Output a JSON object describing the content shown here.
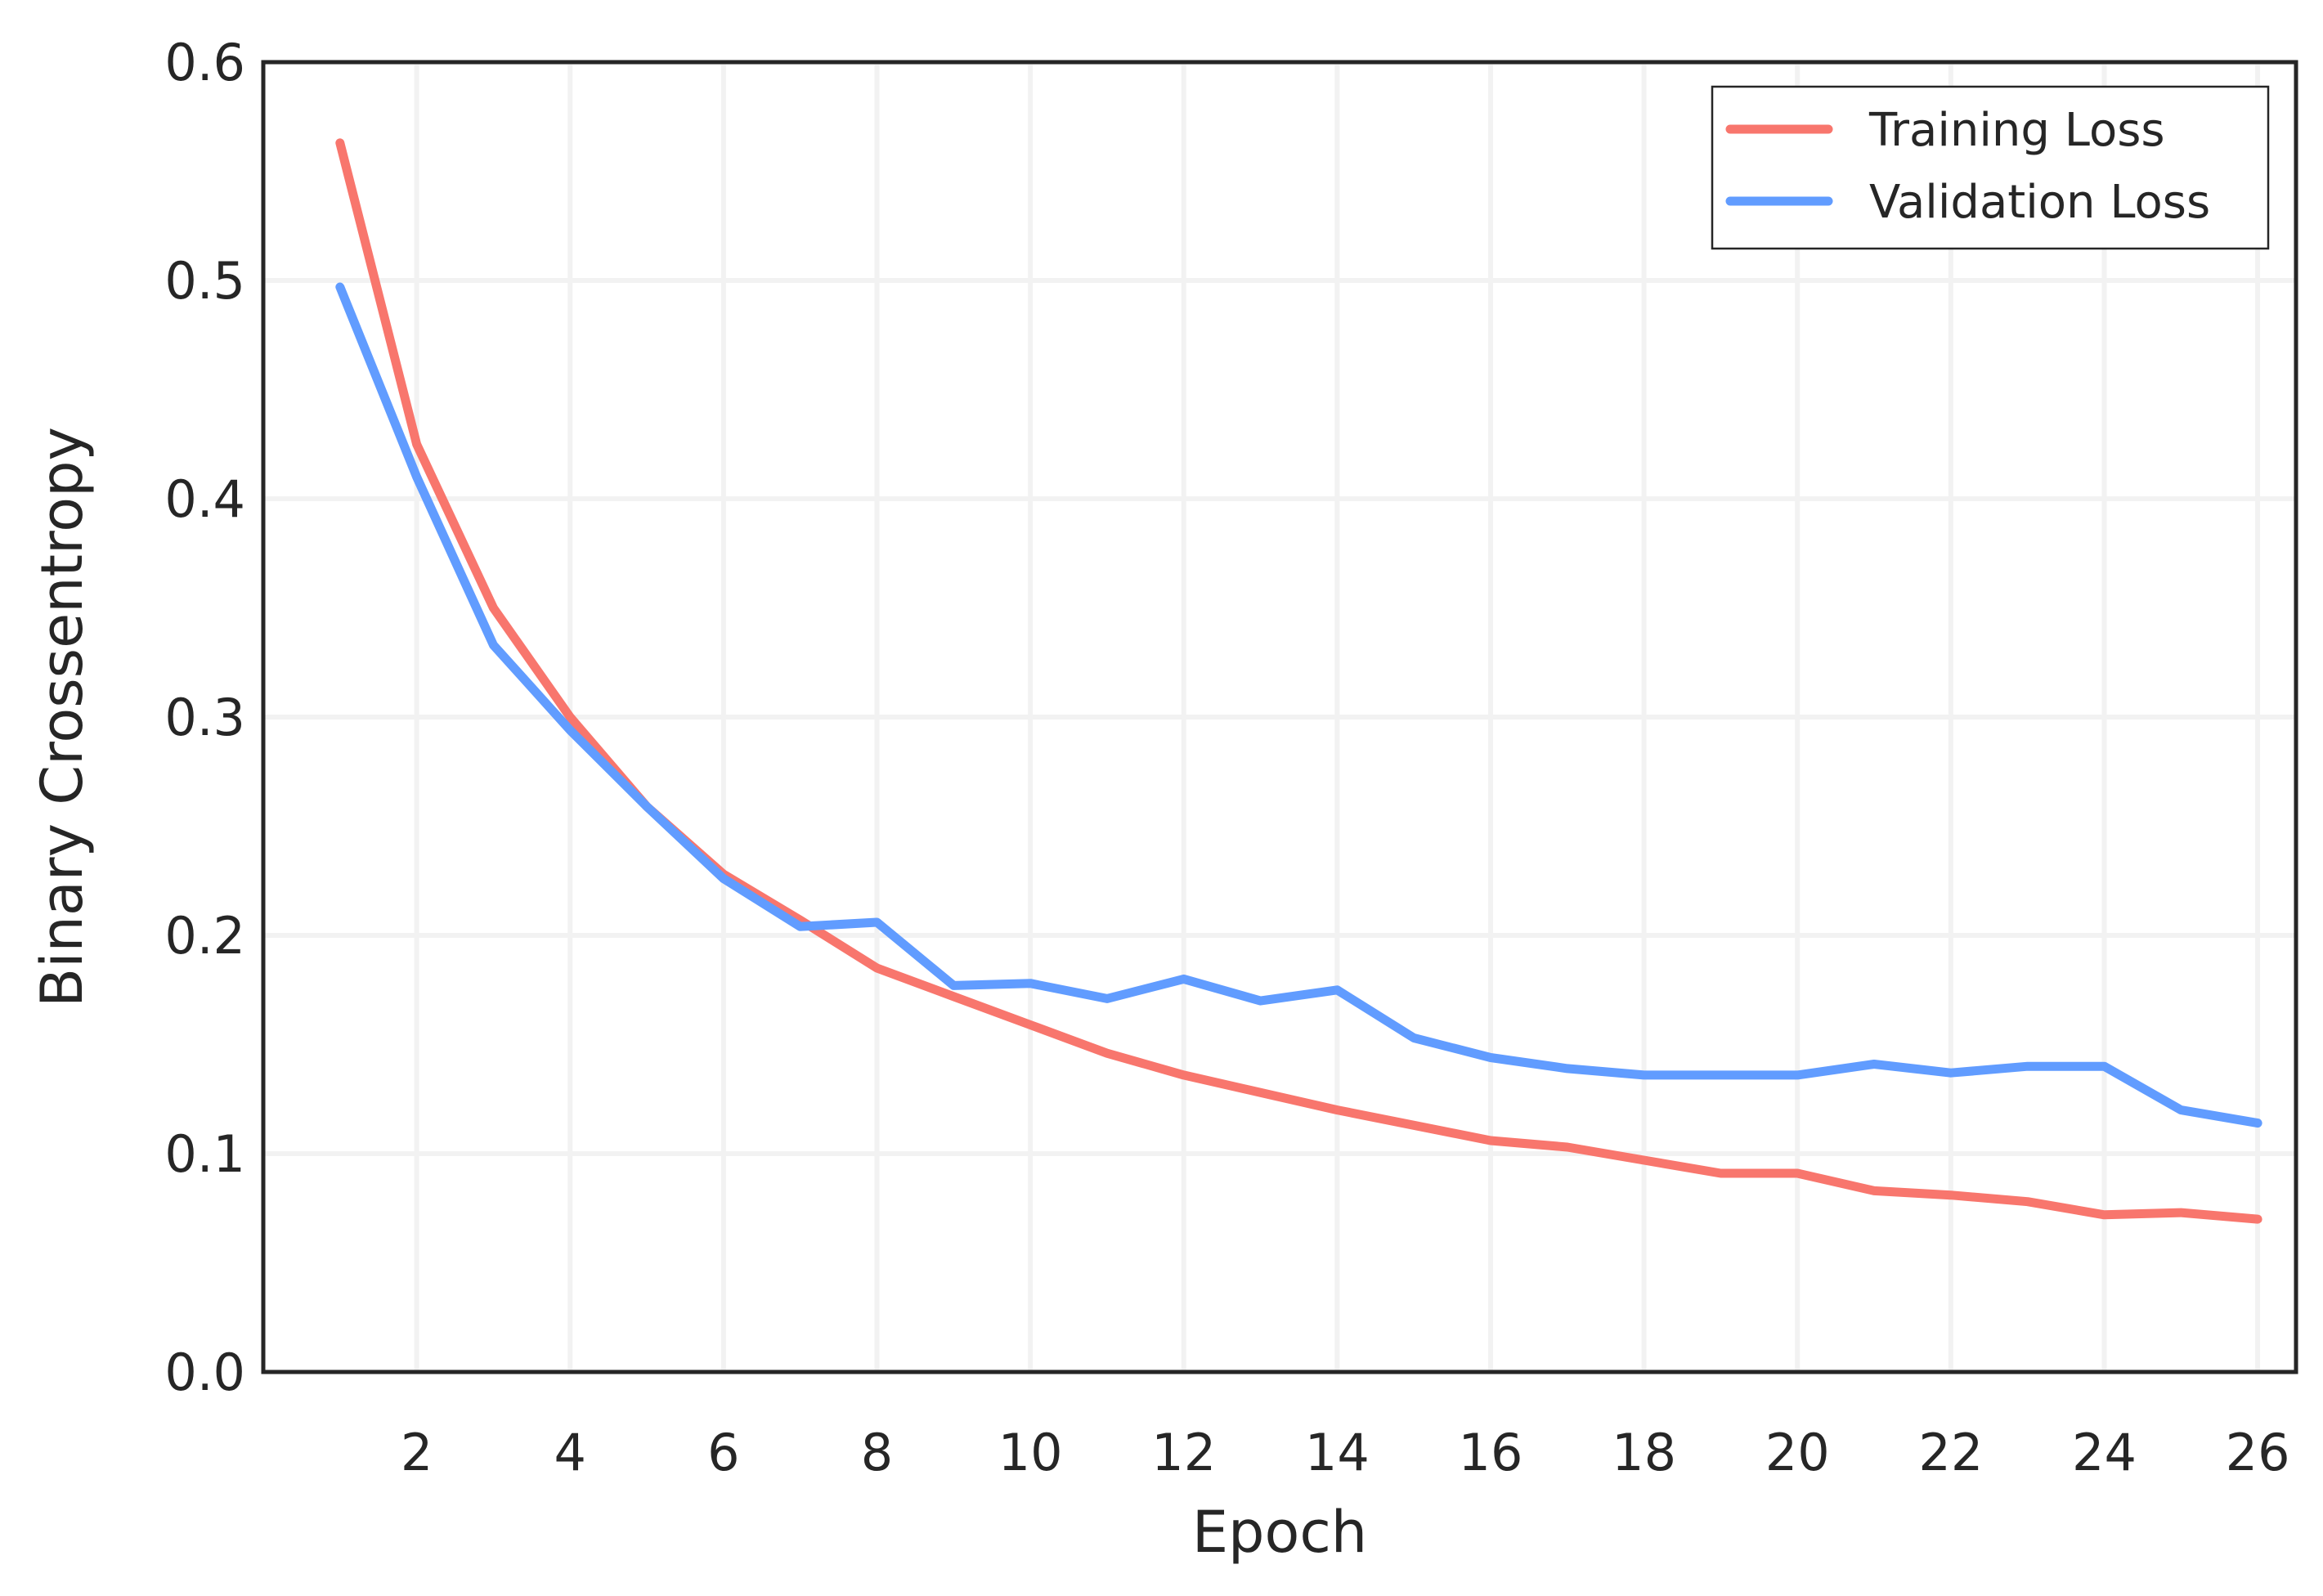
{
  "chart_data": {
    "type": "line",
    "title": "",
    "xlabel": "Epoch",
    "ylabel": "Binary Crossentropy",
    "xlim": [
      0,
      26.5
    ],
    "ylim": [
      0.0,
      0.6
    ],
    "x_ticks": [
      2,
      4,
      6,
      8,
      10,
      12,
      14,
      16,
      18,
      20,
      22,
      24,
      26
    ],
    "y_ticks": [
      0.0,
      0.1,
      0.2,
      0.3,
      0.4,
      0.5,
      0.6
    ],
    "y_tick_labels": [
      "0.0",
      "0.1",
      "0.2",
      "0.3",
      "0.4",
      "0.5",
      "0.6"
    ],
    "grid": true,
    "legend_position": "top-right",
    "x": [
      1,
      2,
      3,
      4,
      5,
      6,
      7,
      8,
      9,
      10,
      11,
      12,
      13,
      14,
      15,
      16,
      17,
      18,
      19,
      20,
      21,
      22,
      23,
      24,
      25,
      26
    ],
    "series": [
      {
        "name": "Training Loss",
        "color": "#f8766d",
        "values": [
          0.563,
          0.425,
          0.35,
          0.3,
          0.259,
          0.228,
          0.207,
          0.185,
          0.172,
          0.159,
          0.146,
          0.136,
          0.128,
          0.12,
          0.113,
          0.106,
          0.103,
          0.097,
          0.091,
          0.091,
          0.083,
          0.081,
          0.078,
          0.072,
          0.073,
          0.07
        ]
      },
      {
        "name": "Validation Loss",
        "color": "#619cff",
        "values": [
          0.497,
          0.41,
          0.333,
          0.294,
          0.259,
          0.226,
          0.204,
          0.206,
          0.177,
          0.178,
          0.171,
          0.18,
          0.17,
          0.175,
          0.153,
          0.144,
          0.139,
          0.136,
          0.136,
          0.136,
          0.141,
          0.137,
          0.14,
          0.14,
          0.12,
          0.114
        ]
      }
    ]
  }
}
